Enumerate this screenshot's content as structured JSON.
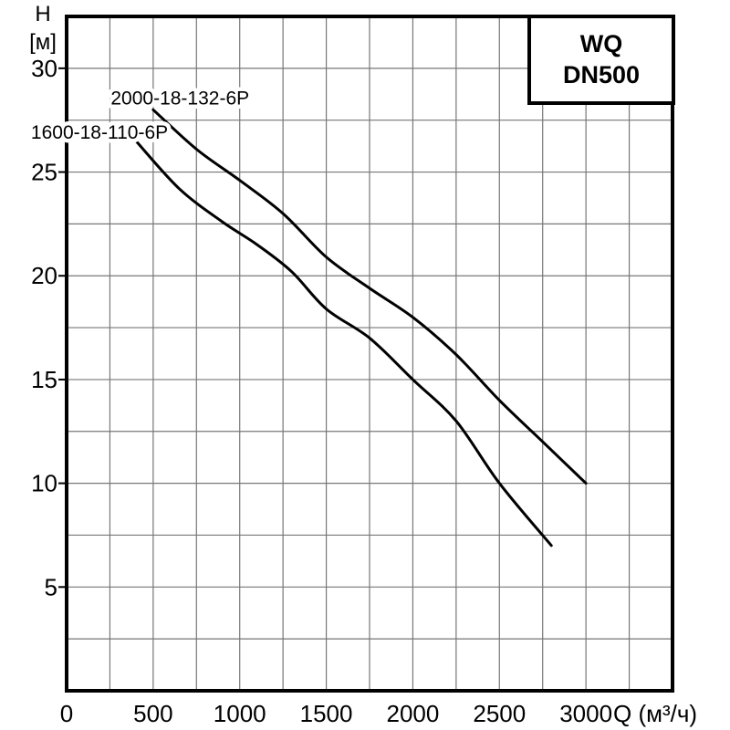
{
  "page": {
    "background": "#ffffff"
  },
  "chart_data": {
    "type": "line",
    "title": "",
    "axis": {
      "x_label": "Q (м³/ч)",
      "y_label_lines": [
        "H",
        "[м]"
      ],
      "x_ticks": [
        0,
        500,
        1000,
        1500,
        2000,
        2500,
        3000
      ],
      "y_ticks": [
        5,
        10,
        15,
        20,
        25,
        30
      ],
      "xlim": [
        0,
        3500
      ],
      "ylim": [
        0,
        32.5
      ],
      "x_grid_step": 250,
      "y_grid_step": 2.5,
      "grid": true,
      "grid_color": "#777777",
      "axis_color": "#000000"
    },
    "legend_box": {
      "position": "top-right",
      "lines": [
        "WQ",
        "DN500"
      ]
    },
    "series": [
      {
        "name": "2000-18-132-6P",
        "color": "#000000",
        "points": [
          [
            500,
            28
          ],
          [
            750,
            26.1
          ],
          [
            1000,
            24.6
          ],
          [
            1250,
            23
          ],
          [
            1500,
            20.9
          ],
          [
            1750,
            19.4
          ],
          [
            2000,
            18
          ],
          [
            2250,
            16.2
          ],
          [
            2500,
            14
          ],
          [
            2750,
            12
          ],
          [
            3000,
            10
          ]
        ],
        "label_anchor": [
          655,
          28.6
        ]
      },
      {
        "name": "1600-18-110-6P",
        "color": "#000000",
        "points": [
          [
            400,
            26.5
          ],
          [
            650,
            24.2
          ],
          [
            900,
            22.6
          ],
          [
            1100,
            21.5
          ],
          [
            1300,
            20.2
          ],
          [
            1500,
            18.4
          ],
          [
            1750,
            17
          ],
          [
            2000,
            15
          ],
          [
            2250,
            13
          ],
          [
            2500,
            10
          ],
          [
            2800,
            7
          ]
        ],
        "label_anchor": [
          190,
          26.95
        ]
      }
    ]
  }
}
